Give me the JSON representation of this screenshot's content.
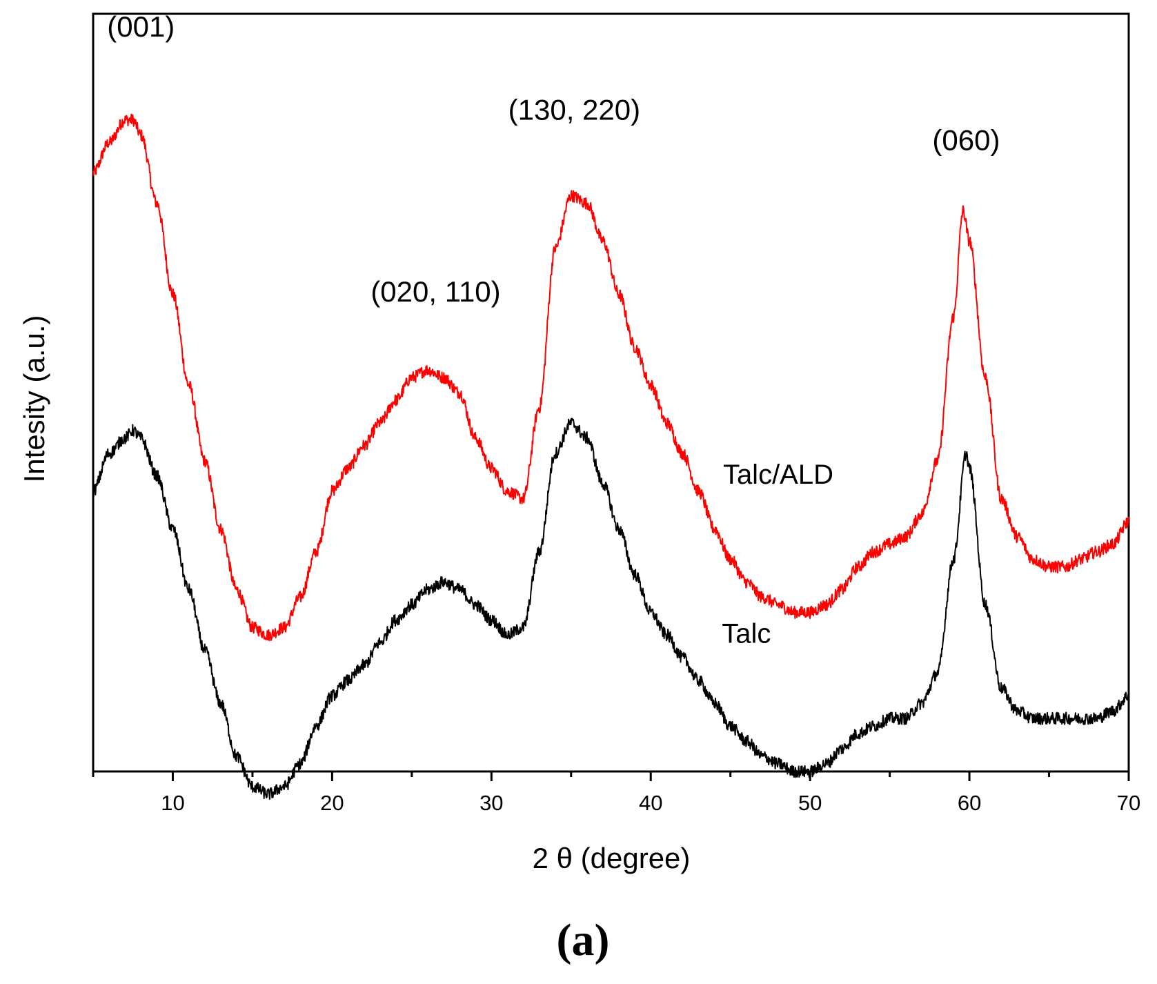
{
  "chart_data": {
    "type": "line",
    "title": "",
    "xlabel": "2 θ  (degree)",
    "ylabel": "Intesity (a.u.)",
    "xlim": [
      5,
      70
    ],
    "ylim": [
      0,
      100
    ],
    "xticks": [
      10,
      20,
      30,
      40,
      50,
      60,
      70
    ],
    "yticks_shown": false,
    "panel_label": "(a)",
    "series": [
      {
        "name": "Talc/ALD",
        "color": "#ff0000",
        "x": [
          5,
          6,
          7,
          7.5,
          8,
          9,
          10,
          11,
          12,
          13,
          14,
          15,
          16,
          17,
          18,
          19,
          20,
          21,
          22,
          23,
          24,
          25,
          26,
          27,
          28,
          29,
          30,
          31,
          32,
          33,
          34,
          35,
          36,
          37,
          38,
          39,
          40,
          41,
          42,
          43,
          44,
          45,
          46,
          47,
          48,
          49,
          50,
          51,
          52,
          53,
          54,
          55,
          56,
          57,
          58,
          59,
          59.6,
          60,
          61,
          62,
          63,
          64,
          65,
          66,
          67,
          68,
          69,
          70
        ],
        "y": [
          79,
          83,
          86,
          86,
          84,
          75,
          63,
          51,
          41,
          32,
          24,
          19,
          18,
          19,
          23,
          29,
          37,
          40,
          43,
          46,
          49,
          52,
          53,
          52,
          50,
          44,
          40,
          37,
          36,
          48,
          69,
          76,
          75,
          70,
          63,
          56,
          51,
          46,
          42,
          37,
          32,
          28,
          25,
          23,
          22,
          21,
          21,
          22,
          24,
          27,
          29,
          30,
          31,
          34,
          41,
          60,
          74,
          70,
          52,
          36,
          31,
          28,
          27,
          27,
          28,
          29,
          30,
          33
        ]
      },
      {
        "name": "Talc",
        "color": "#000000",
        "x": [
          5,
          6,
          7,
          7.5,
          8,
          9,
          10,
          11,
          12,
          13,
          14,
          15,
          16,
          17,
          18,
          19,
          20,
          21,
          22,
          23,
          24,
          25,
          26,
          27,
          28,
          29,
          30,
          31,
          32,
          33,
          34,
          35,
          36,
          37,
          38,
          39,
          40,
          41,
          42,
          43,
          44,
          45,
          46,
          47,
          48,
          49,
          50,
          51,
          52,
          53,
          54,
          55,
          56,
          57,
          58,
          59,
          59.8,
          60,
          61,
          62,
          63,
          64,
          65,
          66,
          67,
          68,
          69,
          70
        ],
        "y": [
          37,
          42,
          44,
          45,
          44,
          39,
          32,
          24,
          16,
          9,
          2,
          -2,
          -3,
          -2,
          1,
          6,
          10,
          12,
          14,
          17,
          20,
          22,
          24,
          25,
          24,
          22,
          20,
          18,
          19,
          29,
          42,
          46,
          44,
          38,
          32,
          26,
          21,
          18,
          15,
          12,
          9,
          6,
          4,
          2,
          1,
          0,
          0,
          1,
          3,
          5,
          6,
          7,
          7,
          9,
          13,
          28,
          42,
          40,
          22,
          11,
          8,
          7,
          7,
          7,
          7,
          7,
          8,
          10
        ]
      }
    ],
    "annotations": [
      {
        "text": "(001)",
        "x": 8,
        "y": 97
      },
      {
        "text": "(020, 110)",
        "x": 26.5,
        "y": 62
      },
      {
        "text": "(130, 220)",
        "x": 35.2,
        "y": 86
      },
      {
        "text": "(060)",
        "x": 59.8,
        "y": 82
      },
      {
        "text": "Talc/ALD",
        "x": 48,
        "y": 38
      },
      {
        "text": "Talc",
        "x": 46,
        "y": 17
      }
    ]
  }
}
